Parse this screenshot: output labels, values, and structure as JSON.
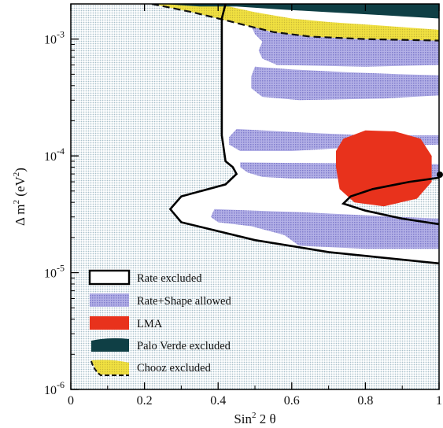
{
  "chart_data": {
    "type": "contour",
    "x_label": "Sin² 2θ",
    "x_label_parts": {
      "base": "Sin",
      "sup": "2",
      "rest": " 2 θ"
    },
    "y_label": "Δm² (eV²)",
    "y_label_parts": {
      "pre": "Δ m",
      "sup1": "2",
      "mid": " (eV",
      "sup2": "2",
      "post": ")"
    },
    "xlim": [
      0,
      1
    ],
    "ylim": [
      1e-06,
      0.002
    ],
    "y_scale": "log",
    "x_ticks": [
      {
        "value": 0,
        "label": "0"
      },
      {
        "value": 0.2,
        "label": "0.2"
      },
      {
        "value": 0.4,
        "label": "0.4"
      },
      {
        "value": 0.6,
        "label": "0.6"
      },
      {
        "value": 0.8,
        "label": "0.8"
      },
      {
        "value": 1,
        "label": "1"
      }
    ],
    "y_ticks": [
      {
        "value": 0.001,
        "base": "10",
        "exp": "-3"
      },
      {
        "value": 0.0001,
        "base": "10",
        "exp": "-4"
      },
      {
        "value": 1e-05,
        "base": "10",
        "exp": "-5"
      },
      {
        "value": 1e-06,
        "base": "10",
        "exp": "-6"
      }
    ],
    "legend_position": "bottom-left",
    "legend": [
      {
        "key": "rate",
        "label": "Rate excluded"
      },
      {
        "key": "shape",
        "label": "Rate+Shape allowed"
      },
      {
        "key": "lma",
        "label": "LMA"
      },
      {
        "key": "paloverde",
        "label": "Palo Verde excluded"
      },
      {
        "key": "chooz",
        "label": "Chooz excluded"
      }
    ],
    "colors": {
      "rate_excluded_fill": "#e4eef2",
      "rate_boundary": "#000000",
      "shape_allowed": "#b3b0e6",
      "lma": "#e8321c",
      "palo_verde": "#0f3f45",
      "chooz": "#f0e040"
    },
    "regions": {
      "rate_boundary": [
        [
          0.42,
          0.002
        ],
        [
          0.41,
          0.0015
        ],
        [
          0.41,
          0.001
        ],
        [
          0.41,
          0.0006
        ],
        [
          0.41,
          0.0003
        ],
        [
          0.41,
          0.00015
        ],
        [
          0.42,
          9e-05
        ],
        [
          0.44,
          8e-05
        ],
        [
          0.45,
          7e-05
        ],
        [
          0.42,
          5.7e-05
        ],
        [
          0.3,
          4.5e-05
        ],
        [
          0.27,
          3.5e-05
        ],
        [
          0.3,
          2.7e-05
        ],
        [
          0.5,
          1.9e-05
        ],
        [
          0.7,
          1.5e-05
        ],
        [
          1.0,
          1.2e-05
        ]
      ],
      "rate_inner": [
        [
          1.0,
          6.5e-05
        ],
        [
          0.92,
          6e-05
        ],
        [
          0.82,
          5.2e-05
        ],
        [
          0.76,
          4.5e-05
        ],
        [
          0.74,
          3.9e-05
        ],
        [
          0.8,
          3.4e-05
        ],
        [
          0.9,
          2.9e-05
        ],
        [
          1.0,
          2.6e-05
        ]
      ],
      "shape_allowed": [
        [
          [
            0.49,
            0.0015
          ],
          [
            0.52,
            0.00125
          ],
          [
            0.54,
            0.00115
          ],
          [
            0.8,
            0.0011
          ],
          [
            1.0,
            0.00105
          ],
          [
            1.0,
            0.0006
          ],
          [
            0.8,
            0.00058
          ],
          [
            0.56,
            0.0006
          ],
          [
            0.52,
            0.00068
          ],
          [
            0.51,
            0.0008
          ],
          [
            0.52,
            0.00095
          ],
          [
            0.5,
            0.0011
          ],
          [
            0.49,
            0.0013
          ]
        ],
        [
          [
            0.5,
            0.00058
          ],
          [
            0.6,
            0.00055
          ],
          [
            0.75,
            0.00052
          ],
          [
            0.9,
            0.0005
          ],
          [
            1.0,
            0.00049
          ],
          [
            1.0,
            0.00033
          ],
          [
            0.85,
            0.00031
          ],
          [
            0.62,
            0.0003
          ],
          [
            0.52,
            0.00032
          ],
          [
            0.49,
            0.00038
          ],
          [
            0.49,
            0.00048
          ]
        ],
        [
          [
            0.45,
            0.00017
          ],
          [
            0.6,
            0.00016
          ],
          [
            0.8,
            0.00015
          ],
          [
            1.0,
            0.00015
          ],
          [
            1.0,
            0.000125
          ],
          [
            0.8,
            0.00012
          ],
          [
            0.6,
            0.00011
          ],
          [
            0.46,
            0.00011
          ],
          [
            0.43,
            0.000125
          ],
          [
            0.43,
            0.000145
          ]
        ],
        [
          [
            0.46,
            8.8e-05
          ],
          [
            0.6,
            8.7e-05
          ],
          [
            0.8,
            8.6e-05
          ],
          [
            1.0,
            8.5e-05
          ],
          [
            1.0,
            6.4e-05
          ],
          [
            0.8,
            6.4e-05
          ],
          [
            0.6,
            6.4e-05
          ],
          [
            0.52,
            6.6e-05
          ],
          [
            0.48,
            7.2e-05
          ],
          [
            0.46,
            8e-05
          ]
        ],
        [
          [
            0.39,
            3.5e-05
          ],
          [
            0.5,
            3.4e-05
          ],
          [
            0.62,
            3.3e-05
          ],
          [
            0.8,
            3.1e-05
          ],
          [
            1.0,
            2.9e-05
          ],
          [
            1.0,
            1.6e-05
          ],
          [
            0.8,
            1.6e-05
          ],
          [
            0.62,
            1.7e-05
          ],
          [
            0.58,
            2.1e-05
          ],
          [
            0.49,
            2.5e-05
          ],
          [
            0.4,
            2.7e-05
          ],
          [
            0.38,
            3e-05
          ]
        ]
      ],
      "lma": [
        [
          0.74,
          0.00014
        ],
        [
          0.8,
          0.000165
        ],
        [
          0.88,
          0.000162
        ],
        [
          0.95,
          0.00014
        ],
        [
          0.98,
          0.0001
        ],
        [
          0.98,
          6e-05
        ],
        [
          0.94,
          4.3e-05
        ],
        [
          0.85,
          3.7e-05
        ],
        [
          0.77,
          4e-05
        ],
        [
          0.73,
          5.2e-05
        ],
        [
          0.72,
          8e-05
        ],
        [
          0.72,
          0.00011
        ]
      ],
      "palo_verde": [
        [
          0.25,
          0.002
        ],
        [
          1.0,
          0.002
        ],
        [
          1.0,
          0.0015
        ],
        [
          0.85,
          0.0016
        ],
        [
          0.7,
          0.0017
        ],
        [
          0.56,
          0.0018
        ],
        [
          0.45,
          0.0019
        ],
        [
          0.35,
          0.0019
        ]
      ],
      "chooz": [
        [
          0.22,
          0.002
        ],
        [
          0.33,
          0.0017
        ],
        [
          0.42,
          0.00145
        ],
        [
          0.48,
          0.0013
        ],
        [
          0.55,
          0.00115
        ],
        [
          0.65,
          0.00105
        ],
        [
          0.8,
          0.001
        ],
        [
          1.0,
          0.00097
        ],
        [
          1.0,
          0.0012
        ],
        [
          0.85,
          0.0013
        ],
        [
          0.7,
          0.0014
        ],
        [
          0.6,
          0.0015
        ],
        [
          0.5,
          0.0017
        ],
        [
          0.43,
          0.0019
        ],
        [
          0.4,
          0.002
        ]
      ]
    }
  }
}
